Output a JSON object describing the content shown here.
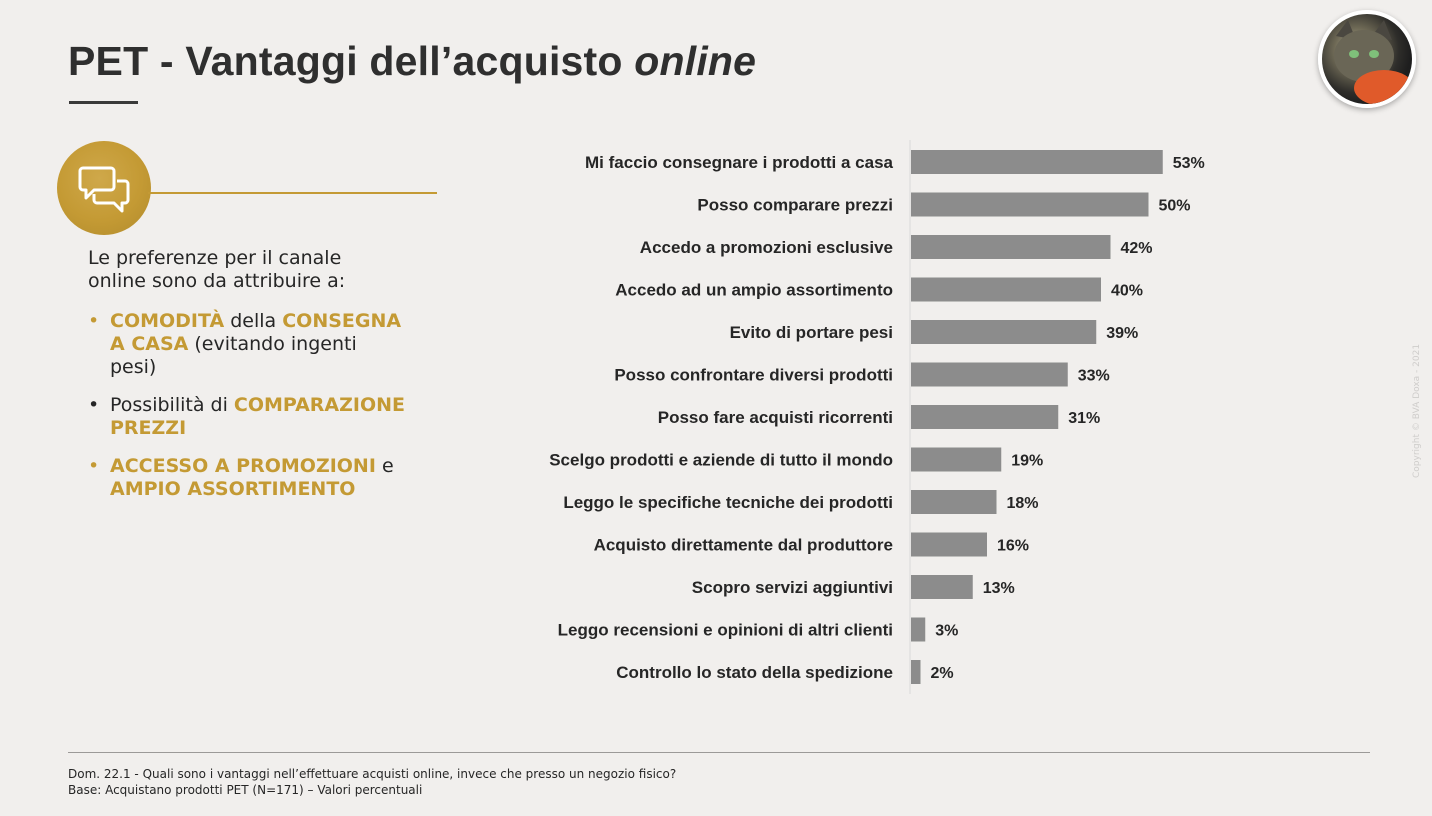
{
  "header": {
    "title_main": "PET - Vantaggi dell’acquisto ",
    "title_italic": "online"
  },
  "copyright": "Copyright © BVA Doxa - 2021",
  "left_panel": {
    "icon": "speech-bubbles-icon",
    "intro": "Le preferenze per il canale online sono da attribuire a:",
    "bullet1": {
      "hl1": "COMODITÀ",
      "text1": " della ",
      "hl2": "CONSEGNA A CASA",
      "text2": " (evitando ingenti pesi)"
    },
    "bullet2": {
      "text1": "Possibilità di ",
      "hl1": "COMPARAZIONE PREZZI"
    },
    "bullet3": {
      "hl1": "ACCESSO A PROMOZIONI",
      "text1": " e ",
      "hl2": "AMPIO ASSORTIMENTO"
    }
  },
  "colors": {
    "bar": "#8c8c8c",
    "accent": "#c49a34",
    "background": "#f1efed"
  },
  "chart_data": {
    "type": "bar",
    "orientation": "horizontal",
    "unit": "%",
    "xlim": [
      0,
      60
    ],
    "categories": [
      "Mi faccio consegnare i prodotti a casa",
      "Posso comparare prezzi",
      "Accedo a promozioni esclusive",
      "Accedo ad un ampio assortimento",
      "Evito di portare pesi",
      "Posso confrontare diversi prodotti",
      "Posso fare acquisti ricorrenti",
      "Scelgo prodotti e aziende di tutto il mondo",
      "Leggo le specifiche tecniche dei prodotti",
      "Acquisto direttamente dal produttore",
      "Scopro servizi aggiuntivi",
      "Leggo recensioni e opinioni di altri clienti",
      "Controllo lo stato della spedizione"
    ],
    "values": [
      53,
      50,
      42,
      40,
      39,
      33,
      31,
      19,
      18,
      16,
      13,
      3,
      2
    ],
    "labels": [
      "53%",
      "50%",
      "42%",
      "40%",
      "39%",
      "33%",
      "31%",
      "19%",
      "18%",
      "16%",
      "13%",
      "3%",
      "2%"
    ]
  },
  "footer": {
    "question": "Dom. 22.1 - Quali sono i vantaggi nell’effettuare acquisti online, invece che presso un negozio fisico?",
    "base": "Base: Acquistano prodotti PET (N=171) – Valori percentuali"
  }
}
